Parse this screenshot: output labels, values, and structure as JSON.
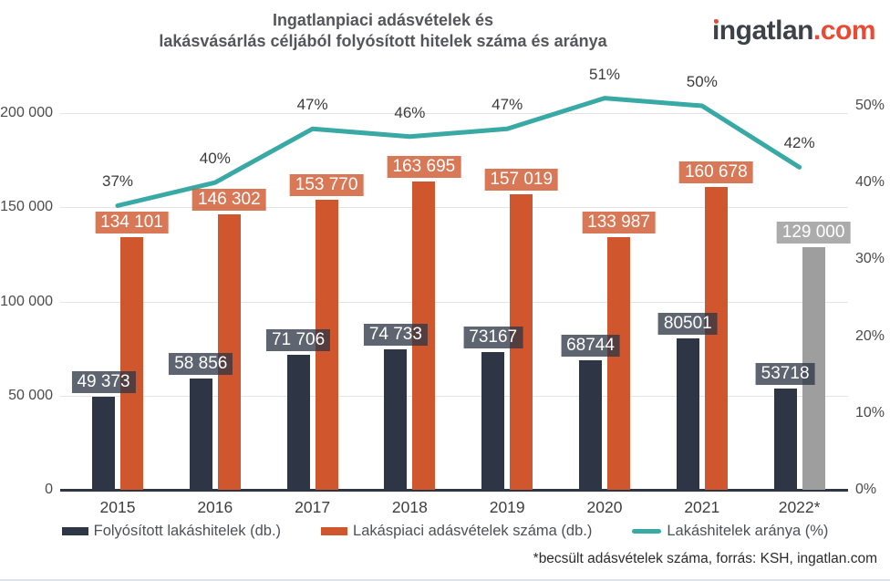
{
  "header": {
    "title_line1": "Ingatlanpiaci adásvételek és",
    "title_line2": "lakásvásárlás céljából folyósított hitelek száma és aránya",
    "logo_text": "ingatlan",
    "logo_suffix": ".com",
    "logo_color": "#3d4148",
    "logo_accent": "#ea4a33"
  },
  "footer": {
    "note": "*becsült adásvételek száma, forrás: KSH, ingatlan.com"
  },
  "legend": {
    "items": [
      {
        "label": "Folyósított lakáshitelek (db.)",
        "swatch": "rect",
        "color": "#2e3545"
      },
      {
        "label": "Lakáspiaci adásvételek száma (db.)",
        "swatch": "rect",
        "color": "#d0562d"
      },
      {
        "label": "Lakáshitelek aránya (%)",
        "swatch": "line",
        "color": "#38a9a4"
      }
    ]
  },
  "chart_data": {
    "type": "bar",
    "subtype": "combo bar + line, dual axis",
    "categories": [
      "2015",
      "2016",
      "2017",
      "2018",
      "2019",
      "2020",
      "2021",
      "2022*"
    ],
    "series": [
      {
        "name": "Folyósított lakáshitelek (db.)",
        "kind": "bar",
        "axis": "left",
        "color": "#2e3545",
        "label_bg": "rgba(46,53,69,0.77)",
        "values": [
          49373,
          58856,
          71706,
          74733,
          73167,
          68744,
          80501,
          53718
        ],
        "labels": [
          "49 373",
          "58 856",
          "71 706",
          "74 733",
          "73167",
          "68744",
          "80501",
          "53718"
        ]
      },
      {
        "name": "Lakáspiaci adásvételek száma (db.)",
        "kind": "bar",
        "axis": "left",
        "color": "#d0562d",
        "label_bg": "rgba(208,86,45,0.8)",
        "estimated_index": 7,
        "estimated_color": "#9e9e9e",
        "estimated_label_bg": "rgba(158,158,158,0.85)",
        "values": [
          134101,
          146302,
          153770,
          163695,
          157019,
          133987,
          160678,
          129000
        ],
        "labels": [
          "134 101",
          "146 302",
          "153 770",
          "163 695",
          "157 019",
          "133 987",
          "160 678",
          "129 000"
        ]
      },
      {
        "name": "Lakáshitelek aránya (%)",
        "kind": "line",
        "axis": "right",
        "color": "#38a9a4",
        "values": [
          37,
          40,
          47,
          46,
          47,
          51,
          50,
          42
        ],
        "labels": [
          "37%",
          "40%",
          "47%",
          "46%",
          "47%",
          "51%",
          "50%",
          "42%"
        ]
      }
    ],
    "left_axis": {
      "range": [
        0,
        200000
      ],
      "ticks": [
        {
          "value": 0,
          "label": "0"
        },
        {
          "value": 50000,
          "label": "50 000"
        },
        {
          "value": 100000,
          "label": "100 000"
        },
        {
          "value": 150000,
          "label": "150 000"
        },
        {
          "value": 200000,
          "label": "200 000"
        }
      ]
    },
    "right_axis": {
      "range": [
        0,
        50
      ],
      "ticks": [
        {
          "value": 0,
          "label": "0%"
        },
        {
          "value": 10,
          "label": "10%"
        },
        {
          "value": 20,
          "label": "20%"
        },
        {
          "value": 30,
          "label": "30%"
        },
        {
          "value": 40,
          "label": "40%"
        },
        {
          "value": 50,
          "label": "50%"
        }
      ]
    },
    "grid": "horizontal only",
    "legend_position": "bottom"
  }
}
